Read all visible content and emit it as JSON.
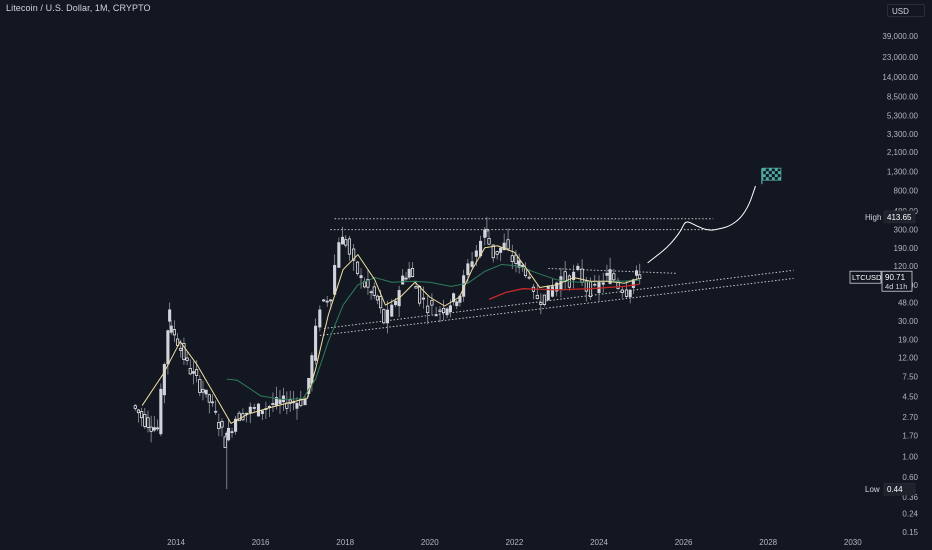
{
  "title": "Litecoin / U.S. Dollar, 1M, CRYPTO",
  "currency_button": "USD",
  "colors": {
    "background": "#131722",
    "up_candle": "#d1d4dc",
    "down_candle": "#ffffff",
    "ma_fast": "#f0e0a0",
    "ma_slow": "#2e7d5b",
    "ma_red": "#c62828",
    "projection": "#ffffff",
    "trendline": "#c7c7c7",
    "flag": "#4fb3a9"
  },
  "price_tags": {
    "high": {
      "label": "High",
      "value": "413.65"
    },
    "low": {
      "label": "Low",
      "value": "0.44"
    },
    "last": {
      "symbol": "LTCUSD",
      "value": "90.71",
      "countdown": "4d 11h"
    }
  },
  "chart_data": {
    "type": "candlestick",
    "title": "Litecoin / U.S. Dollar, 1M, CRYPTO",
    "symbol": "LTCUSD",
    "timeframe": "1M",
    "y_scale": "log",
    "ylim": [
      0.15,
      65000
    ],
    "xlim": [
      2012.6,
      2030.4
    ],
    "x_ticks": [
      "2014",
      "2016",
      "2018",
      "2020",
      "2022",
      "2024",
      "2026",
      "2028",
      "2030"
    ],
    "y_ticks": [
      "39,000.00",
      "23,000.00",
      "14,000.00",
      "8,500.00",
      "5,300.00",
      "3,300.00",
      "2,100.00",
      "1,300.00",
      "800.00",
      "480.00",
      "300.00",
      "190.00",
      "120.00",
      "75.00",
      "48.00",
      "30.00",
      "19.00",
      "12.00",
      "7.50",
      "4.50",
      "2.70",
      "1.70",
      "1.00",
      "0.60",
      "0.36",
      "0.24",
      "0.15"
    ],
    "price_keypoints": [
      [
        2013.0,
        3.6,
        5.5
      ],
      [
        2013.3,
        2.5,
        4.0
      ],
      [
        2013.6,
        2.0,
        3.0
      ],
      [
        2013.85,
        25,
        45
      ],
      [
        2014.0,
        22,
        28
      ],
      [
        2014.3,
        10,
        15
      ],
      [
        2014.6,
        6,
        8
      ],
      [
        2014.9,
        3.5,
        4.5
      ],
      [
        2015.2,
        1.5,
        2.0
      ],
      [
        2015.45,
        2.7,
        3.5
      ],
      [
        2015.8,
        3.2,
        4.0
      ],
      [
        2016.0,
        3.3,
        3.8
      ],
      [
        2016.5,
        3.9,
        4.2
      ],
      [
        2016.9,
        4.0,
        4.5
      ],
      [
        2017.1,
        4.2,
        4.0
      ],
      [
        2017.25,
        12,
        15
      ],
      [
        2017.45,
        45,
        60
      ],
      [
        2017.7,
        60,
        55
      ],
      [
        2017.9,
        240,
        300
      ],
      [
        2018.05,
        220,
        180
      ],
      [
        2018.25,
        120,
        150
      ],
      [
        2018.5,
        75,
        80
      ],
      [
        2018.8,
        50,
        52
      ],
      [
        2018.95,
        30,
        34
      ],
      [
        2019.15,
        40,
        45
      ],
      [
        2019.4,
        90,
        110
      ],
      [
        2019.55,
        110,
        100
      ],
      [
        2019.8,
        55,
        48
      ],
      [
        2020.0,
        45,
        60
      ],
      [
        2020.2,
        38,
        42
      ],
      [
        2020.45,
        45,
        48
      ],
      [
        2020.75,
        60,
        55
      ],
      [
        2020.95,
        120,
        125
      ],
      [
        2021.15,
        180,
        200
      ],
      [
        2021.35,
        280,
        300
      ],
      [
        2021.55,
        160,
        150
      ],
      [
        2021.8,
        200,
        190
      ],
      [
        2022.0,
        140,
        130
      ],
      [
        2022.3,
        110,
        100
      ],
      [
        2022.5,
        55,
        52
      ],
      [
        2022.75,
        55,
        58
      ],
      [
        2022.95,
        70,
        75
      ],
      [
        2023.15,
        90,
        95
      ],
      [
        2023.35,
        85,
        90
      ],
      [
        2023.55,
        105,
        110
      ],
      [
        2023.75,
        70,
        65
      ],
      [
        2023.95,
        65,
        70
      ],
      [
        2024.15,
        85,
        95
      ],
      [
        2024.3,
        100,
        90
      ],
      [
        2024.5,
        75,
        70
      ],
      [
        2024.7,
        65,
        68
      ],
      [
        2024.85,
        85,
        110
      ],
      [
        2025.0,
        100,
        110
      ]
    ],
    "candle_colors_note": "alternating light up/down candles",
    "projection": [
      [
        2025.15,
        130
      ],
      [
        2025.4,
        160
      ],
      [
        2025.6,
        190
      ],
      [
        2025.8,
        240
      ],
      [
        2025.95,
        300
      ],
      [
        2026.05,
        380
      ],
      [
        2026.3,
        330
      ],
      [
        2026.6,
        290
      ],
      [
        2026.9,
        310
      ],
      [
        2027.1,
        330
      ],
      [
        2027.35,
        400
      ],
      [
        2027.55,
        560
      ],
      [
        2027.7,
        900
      ]
    ],
    "ma_fast_pts": [
      [
        2013.2,
        3.6
      ],
      [
        2013.7,
        8
      ],
      [
        2014.1,
        18
      ],
      [
        2014.5,
        10
      ],
      [
        2015.0,
        4
      ],
      [
        2015.3,
        2.3
      ],
      [
        2015.7,
        2.9
      ],
      [
        2016.2,
        3.4
      ],
      [
        2016.7,
        3.9
      ],
      [
        2017.1,
        4.3
      ],
      [
        2017.3,
        9
      ],
      [
        2017.6,
        35
      ],
      [
        2017.95,
        110
      ],
      [
        2018.3,
        160
      ],
      [
        2018.7,
        85
      ],
      [
        2018.95,
        45
      ],
      [
        2019.3,
        55
      ],
      [
        2019.65,
        80
      ],
      [
        2020.0,
        55
      ],
      [
        2020.35,
        44
      ],
      [
        2020.7,
        55
      ],
      [
        2021.0,
        110
      ],
      [
        2021.3,
        190
      ],
      [
        2021.6,
        200
      ],
      [
        2022.0,
        170
      ],
      [
        2022.3,
        110
      ],
      [
        2022.6,
        70
      ],
      [
        2023.0,
        75
      ],
      [
        2023.4,
        90
      ],
      [
        2023.8,
        82
      ],
      [
        2024.2,
        82
      ],
      [
        2024.6,
        78
      ],
      [
        2024.95,
        88
      ]
    ],
    "ma_slow_pts": [
      [
        2015.2,
        7.0
      ],
      [
        2015.45,
        6.8
      ],
      [
        2016.0,
        4.6
      ],
      [
        2016.5,
        4.2
      ],
      [
        2017.0,
        4.3
      ],
      [
        2017.3,
        7
      ],
      [
        2017.6,
        18
      ],
      [
        2017.95,
        45
      ],
      [
        2018.3,
        75
      ],
      [
        2018.7,
        90
      ],
      [
        2019.1,
        80
      ],
      [
        2019.6,
        82
      ],
      [
        2020.0,
        80
      ],
      [
        2020.5,
        72
      ],
      [
        2020.9,
        78
      ],
      [
        2021.3,
        105
      ],
      [
        2021.7,
        125
      ],
      [
        2022.1,
        120
      ],
      [
        2022.5,
        102
      ],
      [
        2023.0,
        85
      ],
      [
        2023.5,
        80
      ],
      [
        2024.0,
        82
      ],
      [
        2024.5,
        82
      ],
      [
        2024.95,
        84
      ]
    ],
    "ma_red_pts": [
      [
        2021.4,
        52
      ],
      [
        2021.8,
        62
      ],
      [
        2022.2,
        68
      ],
      [
        2022.6,
        67
      ],
      [
        2023.0,
        66
      ],
      [
        2023.4,
        67
      ],
      [
        2023.8,
        68
      ],
      [
        2024.2,
        70
      ],
      [
        2024.6,
        72
      ],
      [
        2024.95,
        76
      ]
    ],
    "trendlines": [
      {
        "style": "dotted",
        "x": [
          2017.75,
          2026.7
        ],
        "y": [
          395,
          395
        ]
      },
      {
        "style": "dotted",
        "x": [
          2017.65,
          2026.7
        ],
        "y": [
          300,
          300
        ]
      },
      {
        "style": "dotted",
        "x": [
          2022.8,
          2025.85
        ],
        "y": [
          113,
          100
        ]
      },
      {
        "style": "dotted",
        "x": [
          2017.4,
          2028.6
        ],
        "y": [
          21,
          88
        ]
      },
      {
        "style": "dotted",
        "x": [
          2017.5,
          2028.6
        ],
        "y": [
          25,
          108
        ]
      }
    ],
    "target_flag": {
      "x": 2027.85,
      "y": 1150
    }
  }
}
